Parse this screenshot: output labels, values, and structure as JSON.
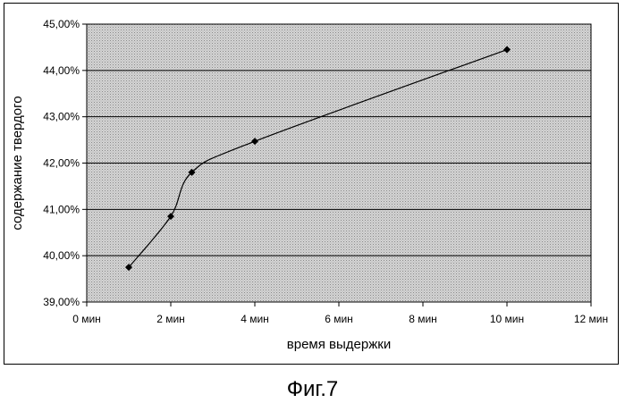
{
  "chart_data": {
    "type": "line",
    "x": [
      1,
      2,
      2.5,
      4,
      10
    ],
    "series": [
      {
        "values": [
          39.75,
          40.85,
          41.8,
          42.47,
          44.45
        ]
      }
    ],
    "xlabel": "время выдержки",
    "ylabel": "содержание твердого",
    "xlim": [
      0,
      12
    ],
    "ylim": [
      39,
      45
    ],
    "x_ticks": [
      0,
      2,
      4,
      6,
      8,
      10,
      12
    ],
    "x_tick_labels": [
      "0 мин",
      "2 мин",
      "4 мин",
      "6 мин",
      "8 мин",
      "10 мин",
      "12 мин"
    ],
    "y_ticks": [
      39,
      40,
      41,
      42,
      43,
      44,
      45
    ],
    "y_tick_labels": [
      "39,00%",
      "40,00%",
      "41,00%",
      "42,00%",
      "43,00%",
      "44,00%",
      "45,00%"
    ],
    "grid": "horizontal",
    "line_style": "smoothed",
    "marker": "diamond",
    "colors": {
      "line": "#000000",
      "plot_background": "#c8c8c8",
      "gridline": "#000000"
    }
  },
  "caption": "Фиг.7"
}
